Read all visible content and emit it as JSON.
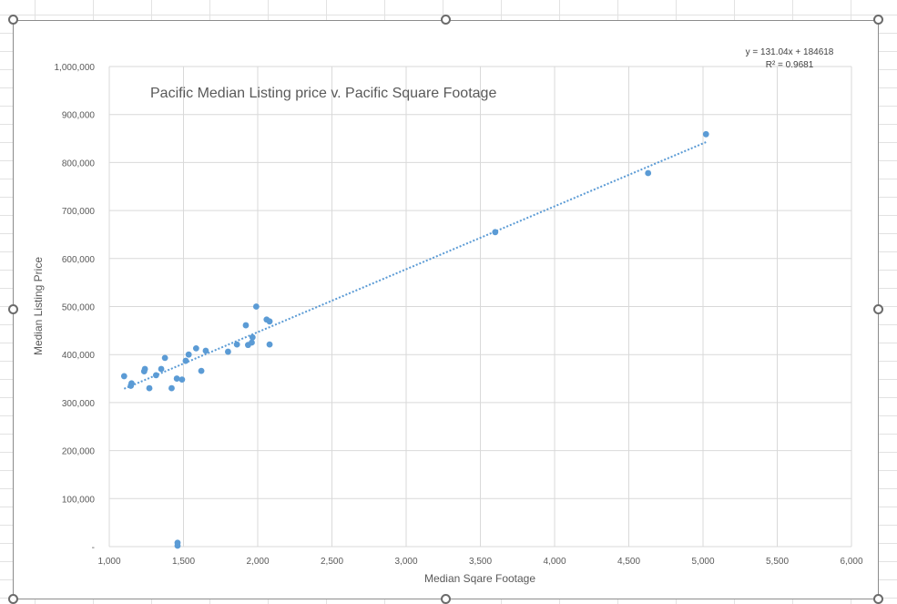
{
  "chart_data": {
    "type": "scatter",
    "title": "Pacific Median Listing price v. Pacific Square Footage",
    "xlabel": "Median Sqare Footage",
    "ylabel": "Median Listing Price",
    "xlim": [
      1000,
      6000
    ],
    "ylim": [
      0,
      1000000
    ],
    "x_ticks": [
      1000,
      1500,
      2000,
      2500,
      3000,
      3500,
      4000,
      4500,
      5000,
      5500,
      6000
    ],
    "x_tick_labels": [
      "1,000",
      "1,500",
      "2,000",
      "2,500",
      "3,000",
      "3,500",
      "4,000",
      "4,500",
      "5,000",
      "5,500",
      "6,000"
    ],
    "y_ticks": [
      0,
      100000,
      200000,
      300000,
      400000,
      500000,
      600000,
      700000,
      800000,
      900000,
      1000000
    ],
    "y_tick_labels": [
      "-",
      "100,000",
      "200,000",
      "300,000",
      "400,000",
      "500,000",
      "600,000",
      "700,000",
      "800,000",
      "900,000",
      "1,000,000"
    ],
    "grid": true,
    "marker_color": "#5b9bd5",
    "trendline": {
      "slope": 131.04,
      "intercept": 184618,
      "equation_label": "y = 131.04x + 184618",
      "r2_label": "R² = 0.9681",
      "color": "#5b9bd5"
    },
    "points": [
      {
        "x": 1100,
        "y": 355000
      },
      {
        "x": 1145,
        "y": 335000
      },
      {
        "x": 1150,
        "y": 340000
      },
      {
        "x": 1235,
        "y": 365000
      },
      {
        "x": 1240,
        "y": 370000
      },
      {
        "x": 1270,
        "y": 330000
      },
      {
        "x": 1315,
        "y": 357000
      },
      {
        "x": 1350,
        "y": 370000
      },
      {
        "x": 1375,
        "y": 393000
      },
      {
        "x": 1420,
        "y": 330000
      },
      {
        "x": 1455,
        "y": 350000
      },
      {
        "x": 1460,
        "y": 2000
      },
      {
        "x": 1460,
        "y": 8000
      },
      {
        "x": 1490,
        "y": 348000
      },
      {
        "x": 1515,
        "y": 387000
      },
      {
        "x": 1535,
        "y": 400000
      },
      {
        "x": 1585,
        "y": 413000
      },
      {
        "x": 1620,
        "y": 366000
      },
      {
        "x": 1650,
        "y": 408000
      },
      {
        "x": 1800,
        "y": 406000
      },
      {
        "x": 1860,
        "y": 421000
      },
      {
        "x": 1920,
        "y": 461000
      },
      {
        "x": 1935,
        "y": 420000
      },
      {
        "x": 1960,
        "y": 425000
      },
      {
        "x": 1965,
        "y": 436000
      },
      {
        "x": 1990,
        "y": 500000
      },
      {
        "x": 2060,
        "y": 473000
      },
      {
        "x": 2080,
        "y": 469000
      },
      {
        "x": 2080,
        "y": 421000
      },
      {
        "x": 3600,
        "y": 655000
      },
      {
        "x": 4630,
        "y": 778000
      },
      {
        "x": 5020,
        "y": 859000
      }
    ]
  }
}
